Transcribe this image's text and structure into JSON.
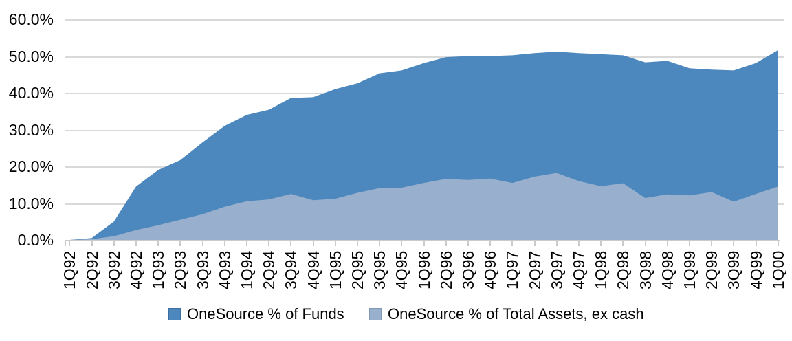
{
  "chart_data": {
    "type": "area",
    "title": "",
    "xlabel": "",
    "ylabel": "",
    "categories": [
      "1Q92",
      "2Q92",
      "3Q92",
      "4Q92",
      "1Q93",
      "2Q93",
      "3Q93",
      "4Q93",
      "1Q94",
      "2Q94",
      "3Q94",
      "4Q94",
      "1Q95",
      "2Q95",
      "3Q95",
      "4Q95",
      "1Q96",
      "2Q96",
      "3Q96",
      "4Q96",
      "1Q97",
      "2Q97",
      "3Q97",
      "4Q97",
      "1Q98",
      "2Q98",
      "3Q98",
      "4Q98",
      "1Q99",
      "2Q99",
      "3Q99",
      "4Q99",
      "1Q00"
    ],
    "series": [
      {
        "name": "OneSource % of Funds",
        "color": "#4c88bd",
        "border_color": "#3c6e9f",
        "values": [
          0,
          0.5,
          5.0,
          14.5,
          19.0,
          21.7,
          26.5,
          31.0,
          34.0,
          35.4,
          38.6,
          38.8,
          41.0,
          42.6,
          45.3,
          46.1,
          48.1,
          49.7,
          50.0,
          50.0,
          50.2,
          50.8,
          51.2,
          50.8,
          50.5,
          50.2,
          48.3,
          48.7,
          46.7,
          46.3,
          46.1,
          48.1,
          51.6
        ]
      },
      {
        "name": "OneSource % of Total Assets, ex cash",
        "color": "#98afcd",
        "border_color": "#8299b6",
        "values": [
          0,
          0.2,
          1.0,
          2.7,
          4.0,
          5.5,
          7.0,
          9.0,
          10.5,
          11.0,
          12.5,
          10.8,
          11.2,
          12.8,
          14.1,
          14.2,
          15.5,
          16.6,
          16.3,
          16.7,
          15.5,
          17.2,
          18.2,
          16.0,
          14.6,
          15.4,
          11.4,
          12.4,
          12.1,
          13.0,
          10.4,
          12.5,
          14.5
        ]
      }
    ],
    "y_axis": {
      "min": 0,
      "max": 60,
      "step": 10,
      "tick_labels": [
        "0.0%",
        "10.0%",
        "20.0%",
        "30.0%",
        "40.0%",
        "50.0%",
        "60.0%"
      ]
    },
    "grid": "horizontal",
    "legend_position": "bottom"
  },
  "colors": {
    "background": "#ffffff",
    "gridline": "#d9d9d9",
    "axis": "#cbcbcb",
    "text": "#000000"
  }
}
